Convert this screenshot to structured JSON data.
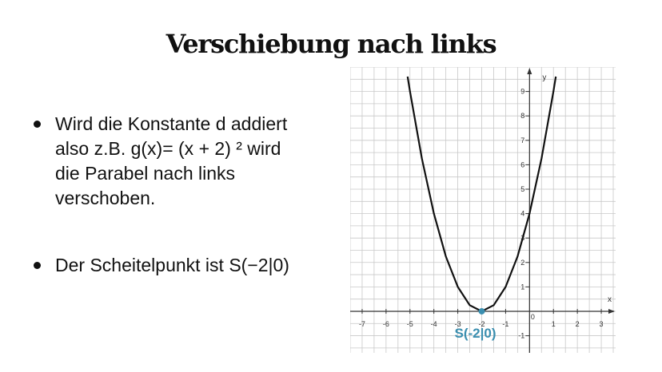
{
  "slide": {
    "title": "Verschiebung nach links",
    "bullets": [
      "Wird die Konstante d addiert\nalso z.B. g(x)= (x + 2) ² wird\ndie Parabel nach links\nverschoben.",
      "Der Scheitelpunkt ist S(−2|0)"
    ]
  },
  "chart_data": {
    "type": "line",
    "function": "g(x) = (x + 2)²",
    "series": [
      {
        "x": [
          -5.1,
          -5,
          -4.5,
          -4,
          -3.5,
          -3,
          -2.5,
          -2,
          -1.5,
          -1,
          -0.5,
          0,
          0.5,
          1,
          1.1
        ],
        "y": [
          9.61,
          9,
          6.25,
          4,
          2.25,
          1,
          0.25,
          0,
          0.25,
          1,
          2.25,
          4,
          6.25,
          9,
          9.61
        ]
      }
    ],
    "xlabel": "x",
    "ylabel": "y",
    "xlim": [
      -7.5,
      3.6
    ],
    "ylim": [
      -1.7,
      10
    ],
    "x_ticks": [
      -7,
      -6,
      -5,
      -4,
      -3,
      -2,
      -1,
      0,
      1,
      2,
      3
    ],
    "x_tick_labels": [
      "-7",
      "-6",
      "-5",
      "-4",
      "-3",
      "-2",
      "-1",
      "0",
      "1",
      "2",
      "3"
    ],
    "y_ticks": [
      -1,
      1,
      2,
      3,
      4,
      5,
      6,
      7,
      8,
      9
    ],
    "y_tick_labels": [
      "-1",
      "1",
      "2",
      "3",
      "4",
      "5",
      "6",
      "7",
      "8",
      "9"
    ],
    "grid": true,
    "vertex": {
      "x": -2,
      "y": 0,
      "label": "S(-2|0)"
    },
    "colors": {
      "curve": "#111111",
      "grid": "#c8c8c8",
      "vertex": "#3b8fb0"
    }
  }
}
